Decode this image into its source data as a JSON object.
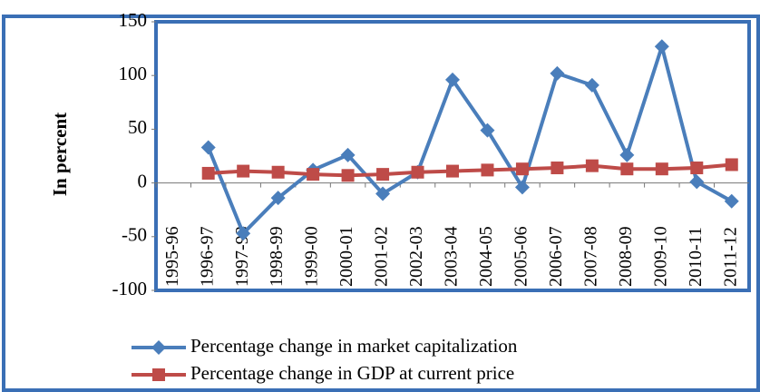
{
  "chart_data": {
    "type": "line",
    "y_label": "In percent",
    "categories": [
      "1995-96",
      "1996-97",
      "1997-98",
      "1998-99",
      "1999-00",
      "2000-01",
      "2001-02",
      "2002-03",
      "2003-04",
      "2004-05",
      "2005-06",
      "2006-07",
      "2007-08",
      "2008-09",
      "2009-10",
      "2010-11",
      "2011-12"
    ],
    "series": [
      {
        "name": "Percentage change in market capitalization",
        "color": "#4a7ebb",
        "marker": "diamond",
        "values": [
          null,
          33,
          -47,
          -14,
          12,
          26,
          -10,
          10,
          96,
          49,
          -4,
          102,
          91,
          26,
          127,
          1,
          -17
        ]
      },
      {
        "name": "Percentage change in GDP at current price",
        "color": "#be4b48",
        "marker": "square",
        "values": [
          null,
          9,
          11,
          10,
          8,
          7,
          8,
          10,
          11,
          12,
          13,
          14,
          16,
          13,
          13,
          14,
          17
        ]
      }
    ],
    "ylim": [
      -100,
      150
    ],
    "yticks": [
      -100,
      -50,
      0,
      50,
      100,
      150
    ],
    "legend": "bottom"
  }
}
